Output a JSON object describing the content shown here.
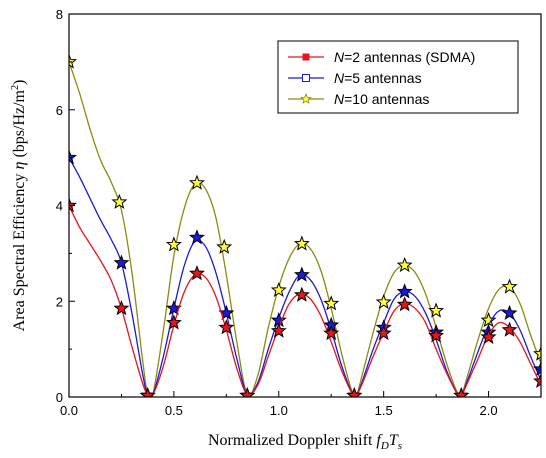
{
  "chart_data": {
    "type": "line",
    "xlabel": "Normalized Doppler shift f_D T_s",
    "xlabel_parts": {
      "text": "Normalized Doppler shift ",
      "math_main": "f",
      "math_sub1": "D",
      "math_mid": "T",
      "math_sub2": "s"
    },
    "ylabel": "Area Spectral Efficiency η (bps/Hz/m²)",
    "ylabel_parts": {
      "text": "Area Spectral Efficiency ",
      "math": "η",
      "unit": " (bps/Hz/m",
      "sup": "2",
      "close": ")"
    },
    "xlim": [
      0,
      2.25
    ],
    "ylim": [
      0,
      8
    ],
    "xticks": [
      0.0,
      0.5,
      1.0,
      1.5,
      2.0
    ],
    "xtick_labels": [
      "0.0",
      "0.5",
      "1.0",
      "1.5",
      "2.0"
    ],
    "yticks": [
      0,
      2,
      4,
      6,
      8
    ],
    "ytick_labels": [
      "0",
      "2",
      "4",
      "6",
      "8"
    ],
    "grid": false,
    "legend_position": "top-right",
    "series": [
      {
        "name": "N=2 antennas (SDMA)",
        "legend_var": "N",
        "legend_rest": "=2 antennas (SDMA)",
        "color": "#e8141b",
        "marker_fill": "#e8141b",
        "curve": [
          [
            0,
            4.0
          ],
          [
            0.05,
            3.55
          ],
          [
            0.1,
            3.2
          ],
          [
            0.15,
            2.85
          ],
          [
            0.2,
            2.45
          ],
          [
            0.25,
            1.85
          ],
          [
            0.3,
            1.05
          ],
          [
            0.35,
            0.3
          ],
          [
            0.375,
            0.05
          ],
          [
            0.4,
            0.05
          ],
          [
            0.45,
            0.65
          ],
          [
            0.5,
            1.5
          ],
          [
            0.55,
            2.2
          ],
          [
            0.6,
            2.55
          ],
          [
            0.65,
            2.5
          ],
          [
            0.7,
            2.1
          ],
          [
            0.75,
            1.4
          ],
          [
            0.8,
            0.6
          ],
          [
            0.85,
            0.05
          ],
          [
            0.9,
            0.25
          ],
          [
            0.95,
            0.85
          ],
          [
            1.0,
            1.45
          ],
          [
            1.05,
            1.95
          ],
          [
            1.1,
            2.15
          ],
          [
            1.15,
            2.05
          ],
          [
            1.2,
            1.7
          ],
          [
            1.25,
            1.15
          ],
          [
            1.3,
            0.55
          ],
          [
            1.35,
            0.07
          ],
          [
            1.37,
            0.03
          ],
          [
            1.4,
            0.3
          ],
          [
            1.45,
            0.85
          ],
          [
            1.5,
            1.35
          ],
          [
            1.55,
            1.8
          ],
          [
            1.6,
            1.95
          ],
          [
            1.65,
            1.85
          ],
          [
            1.7,
            1.55
          ],
          [
            1.75,
            1.0
          ],
          [
            1.8,
            0.5
          ],
          [
            1.85,
            0.07
          ],
          [
            1.87,
            0.03
          ],
          [
            1.9,
            0.3
          ],
          [
            1.95,
            0.8
          ],
          [
            2.0,
            1.3
          ],
          [
            2.05,
            1.55
          ],
          [
            2.1,
            1.45
          ],
          [
            2.15,
            1.15
          ],
          [
            2.2,
            0.7
          ],
          [
            2.25,
            0.25
          ]
        ],
        "markers": [
          [
            0,
            4.0
          ],
          [
            0.25,
            1.85
          ],
          [
            0.375,
            0.03
          ],
          [
            0.5,
            1.55
          ],
          [
            0.61,
            2.58
          ],
          [
            0.75,
            1.45
          ],
          [
            0.85,
            0.03
          ],
          [
            1.0,
            1.38
          ],
          [
            1.11,
            2.13
          ],
          [
            1.25,
            1.33
          ],
          [
            1.36,
            0.03
          ],
          [
            1.5,
            1.33
          ],
          [
            1.6,
            1.93
          ],
          [
            1.75,
            1.28
          ],
          [
            1.87,
            0.03
          ],
          [
            2.0,
            1.25
          ],
          [
            2.1,
            1.4
          ],
          [
            2.25,
            0.33
          ]
        ]
      },
      {
        "name": "N=5 antennas",
        "legend_var": "N",
        "legend_rest": "=5 antennas",
        "color": "#1a1adb",
        "marker_fill": "#1a1adb",
        "curve": [
          [
            0,
            5.0
          ],
          [
            0.05,
            4.6
          ],
          [
            0.1,
            4.15
          ],
          [
            0.15,
            3.7
          ],
          [
            0.2,
            3.3
          ],
          [
            0.25,
            2.8
          ],
          [
            0.3,
            1.75
          ],
          [
            0.35,
            0.5
          ],
          [
            0.375,
            0.05
          ],
          [
            0.4,
            0.05
          ],
          [
            0.45,
            0.85
          ],
          [
            0.5,
            1.85
          ],
          [
            0.55,
            2.75
          ],
          [
            0.6,
            3.25
          ],
          [
            0.65,
            3.15
          ],
          [
            0.7,
            2.6
          ],
          [
            0.75,
            1.75
          ],
          [
            0.8,
            0.8
          ],
          [
            0.85,
            0.05
          ],
          [
            0.9,
            0.3
          ],
          [
            0.95,
            1.0
          ],
          [
            1.0,
            1.65
          ],
          [
            1.05,
            2.2
          ],
          [
            1.1,
            2.55
          ],
          [
            1.15,
            2.45
          ],
          [
            1.2,
            2.05
          ],
          [
            1.25,
            1.4
          ],
          [
            1.3,
            0.65
          ],
          [
            1.35,
            0.08
          ],
          [
            1.37,
            0.03
          ],
          [
            1.4,
            0.35
          ],
          [
            1.45,
            1.0
          ],
          [
            1.5,
            1.55
          ],
          [
            1.55,
            2.05
          ],
          [
            1.6,
            2.2
          ],
          [
            1.65,
            2.1
          ],
          [
            1.7,
            1.75
          ],
          [
            1.75,
            1.2
          ],
          [
            1.8,
            0.55
          ],
          [
            1.85,
            0.08
          ],
          [
            1.87,
            0.03
          ],
          [
            1.9,
            0.35
          ],
          [
            1.95,
            0.95
          ],
          [
            2.0,
            1.5
          ],
          [
            2.05,
            1.8
          ],
          [
            2.1,
            1.75
          ],
          [
            2.15,
            1.4
          ],
          [
            2.2,
            0.85
          ],
          [
            2.25,
            0.35
          ]
        ],
        "markers": [
          [
            0,
            5.0
          ],
          [
            0.25,
            2.8
          ],
          [
            0.375,
            0.03
          ],
          [
            0.5,
            1.85
          ],
          [
            0.61,
            3.33
          ],
          [
            0.75,
            1.75
          ],
          [
            0.85,
            0.03
          ],
          [
            1.0,
            1.6
          ],
          [
            1.11,
            2.55
          ],
          [
            1.25,
            1.5
          ],
          [
            1.36,
            0.03
          ],
          [
            1.5,
            1.45
          ],
          [
            1.6,
            2.2
          ],
          [
            1.75,
            1.35
          ],
          [
            1.87,
            0.03
          ],
          [
            2.0,
            1.35
          ],
          [
            2.1,
            1.75
          ],
          [
            2.25,
            0.58
          ]
        ]
      },
      {
        "name": "N=10 antennas",
        "legend_var": "N",
        "legend_rest": "=10 antennas",
        "color": "#8b8b10",
        "marker_fill": "#ffff3a",
        "curve": [
          [
            0,
            7.0
          ],
          [
            0.05,
            6.35
          ],
          [
            0.1,
            5.6
          ],
          [
            0.15,
            4.95
          ],
          [
            0.2,
            4.5
          ],
          [
            0.25,
            3.9
          ],
          [
            0.3,
            2.6
          ],
          [
            0.35,
            0.8
          ],
          [
            0.375,
            0.05
          ],
          [
            0.4,
            0.05
          ],
          [
            0.45,
            1.4
          ],
          [
            0.5,
            2.95
          ],
          [
            0.55,
            3.95
          ],
          [
            0.6,
            4.45
          ],
          [
            0.65,
            4.35
          ],
          [
            0.7,
            3.75
          ],
          [
            0.75,
            2.55
          ],
          [
            0.8,
            1.15
          ],
          [
            0.85,
            0.05
          ],
          [
            0.9,
            0.45
          ],
          [
            0.95,
            1.45
          ],
          [
            1.0,
            2.3
          ],
          [
            1.05,
            2.9
          ],
          [
            1.1,
            3.2
          ],
          [
            1.15,
            3.1
          ],
          [
            1.2,
            2.65
          ],
          [
            1.25,
            1.85
          ],
          [
            1.3,
            0.9
          ],
          [
            1.35,
            0.1
          ],
          [
            1.37,
            0.03
          ],
          [
            1.4,
            0.5
          ],
          [
            1.45,
            1.35
          ],
          [
            1.5,
            2.1
          ],
          [
            1.55,
            2.6
          ],
          [
            1.6,
            2.75
          ],
          [
            1.65,
            2.6
          ],
          [
            1.7,
            2.15
          ],
          [
            1.75,
            1.45
          ],
          [
            1.8,
            0.7
          ],
          [
            1.85,
            0.1
          ],
          [
            1.87,
            0.03
          ],
          [
            1.9,
            0.45
          ],
          [
            1.95,
            1.2
          ],
          [
            2.0,
            1.85
          ],
          [
            2.05,
            2.25
          ],
          [
            2.1,
            2.3
          ],
          [
            2.15,
            1.95
          ],
          [
            2.2,
            1.3
          ],
          [
            2.25,
            0.7
          ]
        ],
        "markers": [
          [
            0,
            7.0
          ],
          [
            0.24,
            4.07
          ],
          [
            0.375,
            0.03
          ],
          [
            0.5,
            3.18
          ],
          [
            0.61,
            4.47
          ],
          [
            0.74,
            3.13
          ],
          [
            0.85,
            0.03
          ],
          [
            1.0,
            2.23
          ],
          [
            1.11,
            3.2
          ],
          [
            1.25,
            1.95
          ],
          [
            1.36,
            0.03
          ],
          [
            1.5,
            1.98
          ],
          [
            1.6,
            2.75
          ],
          [
            1.75,
            1.8
          ],
          [
            1.87,
            0.03
          ],
          [
            2.0,
            1.6
          ],
          [
            2.1,
            2.3
          ],
          [
            2.25,
            0.9
          ]
        ]
      }
    ]
  }
}
